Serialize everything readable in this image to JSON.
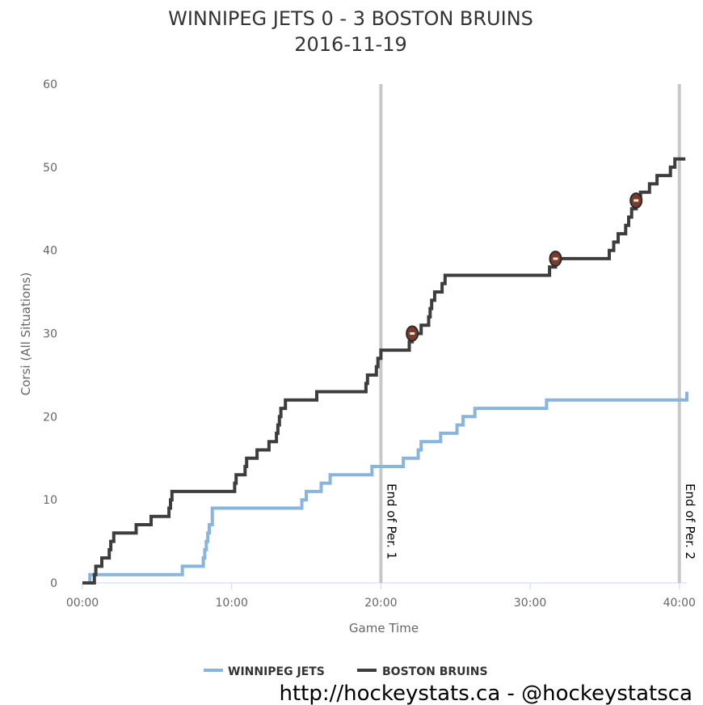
{
  "chart_data": {
    "type": "line",
    "title": "WINNIPEG JETS 0 - 3 BOSTON BRUINS",
    "subtitle": "2016-11-19",
    "xlabel": "Game Time",
    "ylabel": "Corsi (All Situations)",
    "xlim": [
      0,
      40.5
    ],
    "ylim": [
      0,
      60
    ],
    "x_ticks": [
      {
        "value": 0,
        "label": "00:00"
      },
      {
        "value": 10,
        "label": "10:00"
      },
      {
        "value": 20,
        "label": "20:00"
      },
      {
        "value": 30,
        "label": "30:00"
      },
      {
        "value": 40,
        "label": "40:00"
      }
    ],
    "y_ticks": [
      0,
      10,
      20,
      30,
      40,
      50,
      60
    ],
    "grid": "horizontal-axis-only",
    "legend_position": "bottom-center",
    "period_markers": [
      {
        "x": 20,
        "label": "End of Per. 1"
      },
      {
        "x": 40,
        "label": "End of Per. 2"
      }
    ],
    "series": [
      {
        "name": "WINNIPEG JETS",
        "color": "#89b4de",
        "points": [
          [
            0,
            0
          ],
          [
            0.5,
            1
          ],
          [
            6.7,
            2
          ],
          [
            8.1,
            3
          ],
          [
            8.2,
            4
          ],
          [
            8.3,
            5
          ],
          [
            8.4,
            6
          ],
          [
            8.5,
            7
          ],
          [
            8.7,
            9
          ],
          [
            14.7,
            10
          ],
          [
            15.0,
            11
          ],
          [
            16.0,
            12
          ],
          [
            16.6,
            13
          ],
          [
            19.4,
            14
          ],
          [
            21.5,
            15
          ],
          [
            22.5,
            16
          ],
          [
            22.7,
            17
          ],
          [
            24.0,
            18
          ],
          [
            25.1,
            19
          ],
          [
            25.5,
            20
          ],
          [
            26.3,
            21
          ],
          [
            31.1,
            22
          ],
          [
            40.5,
            23
          ]
        ]
      },
      {
        "name": "BOSTON BRUINS",
        "color": "#3d3d3d",
        "points": [
          [
            0,
            0
          ],
          [
            0.8,
            1
          ],
          [
            0.9,
            2
          ],
          [
            1.3,
            3
          ],
          [
            1.8,
            4
          ],
          [
            1.9,
            5
          ],
          [
            2.1,
            6
          ],
          [
            3.6,
            7
          ],
          [
            4.6,
            8
          ],
          [
            5.8,
            9
          ],
          [
            5.9,
            10
          ],
          [
            6.0,
            11
          ],
          [
            10.2,
            12
          ],
          [
            10.3,
            13
          ],
          [
            10.9,
            14
          ],
          [
            11.0,
            15
          ],
          [
            11.7,
            16
          ],
          [
            12.5,
            17
          ],
          [
            13.0,
            18
          ],
          [
            13.1,
            19
          ],
          [
            13.2,
            20
          ],
          [
            13.3,
            21
          ],
          [
            13.6,
            22
          ],
          [
            15.7,
            23
          ],
          [
            19.0,
            24
          ],
          [
            19.1,
            25
          ],
          [
            19.7,
            26
          ],
          [
            19.8,
            27
          ],
          [
            20.0,
            28
          ],
          [
            21.9,
            29
          ],
          [
            22.1,
            30
          ],
          [
            22.7,
            31
          ],
          [
            23.2,
            32
          ],
          [
            23.3,
            33
          ],
          [
            23.4,
            34
          ],
          [
            23.6,
            35
          ],
          [
            24.1,
            36
          ],
          [
            24.3,
            37
          ],
          [
            31.3,
            38
          ],
          [
            31.7,
            39
          ],
          [
            35.3,
            40
          ],
          [
            35.6,
            41
          ],
          [
            35.9,
            42
          ],
          [
            36.4,
            43
          ],
          [
            36.6,
            44
          ],
          [
            36.8,
            45
          ],
          [
            37.1,
            46
          ],
          [
            37.4,
            47
          ],
          [
            38.0,
            48
          ],
          [
            38.5,
            49
          ],
          [
            39.4,
            50
          ],
          [
            39.7,
            51
          ],
          [
            40.4,
            51
          ]
        ]
      }
    ],
    "goal_markers": [
      {
        "x": 22.1,
        "y": 30,
        "team": "BOSTON BRUINS",
        "icon": "hockey-puck-icon"
      },
      {
        "x": 31.7,
        "y": 39,
        "team": "BOSTON BRUINS",
        "icon": "hockey-puck-icon"
      },
      {
        "x": 37.1,
        "y": 46,
        "team": "BOSTON BRUINS",
        "icon": "hockey-puck-icon"
      }
    ],
    "colors": {
      "winnipeg": "#89b4de",
      "boston": "#3d3d3d",
      "period_line": "#c8c8c8",
      "axis_line": "#ccd6eb",
      "marker_fill": "#7a3b2e",
      "marker_stroke": "#2a2a2a"
    }
  },
  "footer": {
    "credit": "http://hockeystats.ca - @hockeystatsca"
  }
}
